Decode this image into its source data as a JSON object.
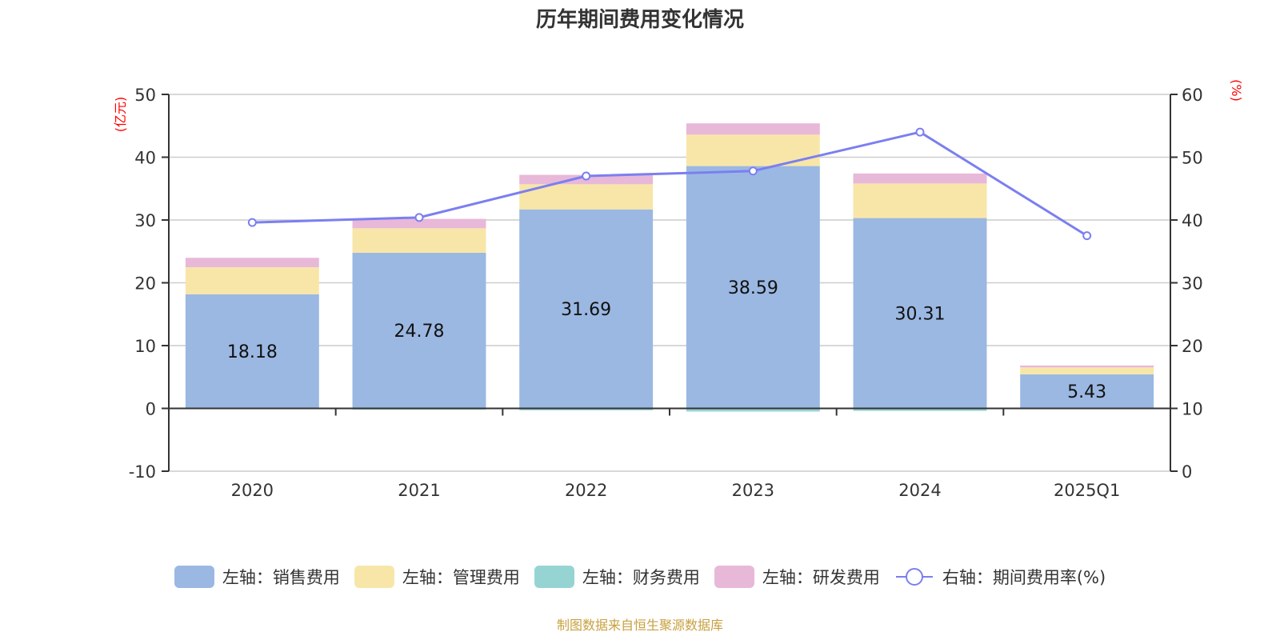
{
  "chart_data": {
    "type": "bar",
    "title": "历年期间费用变化情况",
    "categories": [
      "2020",
      "2021",
      "2022",
      "2023",
      "2024",
      "2025Q1"
    ],
    "left_axis": {
      "label": "(亿元)",
      "ylim": [
        -10,
        50
      ],
      "ticks": [
        "-10",
        "0",
        "10",
        "20",
        "30",
        "40",
        "50"
      ]
    },
    "right_axis": {
      "label": "(%)",
      "ylim": [
        0,
        60
      ],
      "ticks": [
        "0",
        "10",
        "20",
        "30",
        "40",
        "50",
        "60"
      ]
    },
    "grid": true,
    "legend_position": "bottom",
    "series": [
      {
        "name": "左轴：销售费用",
        "type": "bar",
        "axis": "left",
        "color": "#9bb8e2",
        "values": [
          18.18,
          24.78,
          31.69,
          38.59,
          30.31,
          5.43
        ],
        "labels": [
          "18.18",
          "24.78",
          "31.69",
          "38.59",
          "30.31",
          "5.43"
        ]
      },
      {
        "name": "左轴：管理费用",
        "type": "bar",
        "axis": "left",
        "color": "#f8e6a8",
        "values": [
          4.3,
          3.9,
          4.0,
          5.0,
          5.5,
          1.1
        ]
      },
      {
        "name": "左轴：财务费用",
        "type": "bar",
        "axis": "left",
        "color": "#96d4d4",
        "values": [
          0.0,
          -0.2,
          -0.3,
          -0.5,
          -0.4,
          0.0
        ]
      },
      {
        "name": "左轴：研发费用",
        "type": "bar",
        "axis": "left",
        "color": "#e8b8d8",
        "values": [
          1.5,
          1.5,
          1.5,
          1.8,
          1.6,
          0.3
        ]
      },
      {
        "name": "右轴：期间费用率(%)",
        "type": "line",
        "axis": "right",
        "color": "#7b7ff0",
        "values": [
          39.6,
          40.4,
          47.0,
          47.8,
          54.0,
          37.5
        ]
      }
    ]
  },
  "source": "制图数据来自恒生聚源数据库",
  "axis_label_color": "#ff0000"
}
